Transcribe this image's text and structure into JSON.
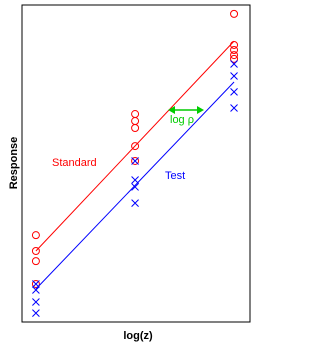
{
  "chart_data": {
    "type": "scatter",
    "xlabel": "log(z)",
    "ylabel": "Response",
    "xlim": [
      0,
      100
    ],
    "ylim": [
      0,
      100
    ],
    "series": [
      {
        "name": "Standard",
        "color": "#ff0000",
        "marker": "circle",
        "x": [
          6.1,
          6.1,
          6.1,
          6.1,
          49.6,
          49.6,
          49.6,
          49.6,
          49.6,
          93.0,
          93.0,
          93.0,
          93.0,
          93.0
        ],
        "y": [
          27.4,
          22.4,
          19.2,
          12.0,
          65.6,
          63.4,
          61.2,
          55.5,
          50.8,
          97.2,
          87.4,
          85.8,
          84.2,
          83.0
        ],
        "fit": {
          "x": [
            6.1,
            93.0
          ],
          "y": [
            22.4,
            88.6
          ]
        }
      },
      {
        "name": "Test",
        "color": "#0000ff",
        "marker": "x",
        "x": [
          6.1,
          6.1,
          6.1,
          6.1,
          49.6,
          49.6,
          49.6,
          49.6,
          93.0,
          93.0,
          93.0,
          93.0
        ],
        "y": [
          12.0,
          10.1,
          6.3,
          2.8,
          50.8,
          44.8,
          42.6,
          37.5,
          81.4,
          77.6,
          72.6,
          67.5
        ],
        "fit": {
          "x": [
            6.1,
            93.0
          ],
          "y": [
            10.4,
            75.7
          ]
        }
      }
    ],
    "annotations": [
      {
        "text": "log ρ",
        "color": "#00cc00"
      }
    ]
  }
}
